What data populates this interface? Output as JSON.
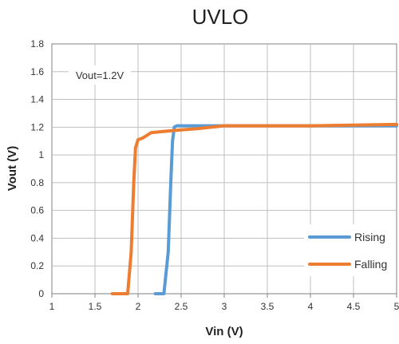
{
  "chart_data": {
    "type": "line",
    "title": "UVLO",
    "xlabel": "Vin (V)",
    "ylabel": "Vout (V)",
    "xlim": [
      1,
      5
    ],
    "ylim": [
      0,
      1.8
    ],
    "x_ticks": [
      1,
      1.5,
      2,
      2.5,
      3,
      3.5,
      4,
      4.5,
      5
    ],
    "x_tick_labels": [
      "1",
      "1.5",
      "2",
      "2.5",
      "3",
      "3.5",
      "4",
      "4.5",
      "5"
    ],
    "y_ticks": [
      0,
      0.2,
      0.4,
      0.6,
      0.8,
      1,
      1.2,
      1.4,
      1.6,
      1.8
    ],
    "y_tick_labels": [
      "0",
      "0.2",
      "0.4",
      "0.6",
      "0.8",
      "1",
      "1.2",
      "1.4",
      "1.6",
      "1.8"
    ],
    "grid": true,
    "legend_position": "bottom-right",
    "annotation": "Vout=1.2V",
    "series": [
      {
        "name": "Rising",
        "color": "#5B9BD5",
        "x": [
          2.2,
          2.3,
          2.35,
          2.38,
          2.4,
          2.42,
          2.45,
          2.5,
          3,
          4,
          5
        ],
        "y": [
          0,
          0,
          0.3,
          0.8,
          1.1,
          1.2,
          1.21,
          1.21,
          1.21,
          1.21,
          1.21
        ]
      },
      {
        "name": "Falling",
        "color": "#ED7D31",
        "x": [
          1.7,
          1.88,
          1.92,
          1.95,
          1.97,
          2.0,
          2.05,
          2.1,
          2.15,
          2.3,
          2.5,
          2.7,
          3.0,
          3.5,
          4.0,
          5.0
        ],
        "y": [
          0,
          0,
          0.3,
          0.8,
          1.05,
          1.11,
          1.12,
          1.14,
          1.16,
          1.17,
          1.18,
          1.19,
          1.21,
          1.21,
          1.21,
          1.22
        ]
      }
    ]
  }
}
